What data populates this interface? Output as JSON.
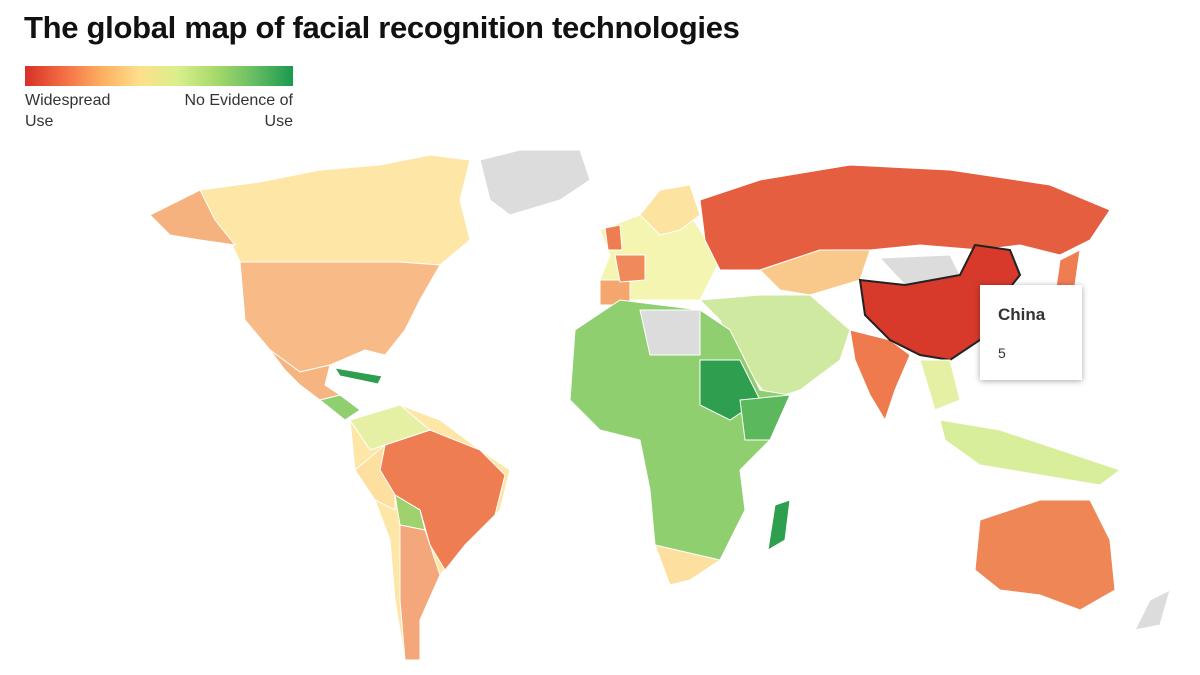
{
  "header": {
    "title": "The global map of facial recognition technologies"
  },
  "legend": {
    "low_label": "Widespread Use",
    "high_label": "No Evidence of Use"
  },
  "tooltip": {
    "country": "China",
    "value": "5"
  }
}
